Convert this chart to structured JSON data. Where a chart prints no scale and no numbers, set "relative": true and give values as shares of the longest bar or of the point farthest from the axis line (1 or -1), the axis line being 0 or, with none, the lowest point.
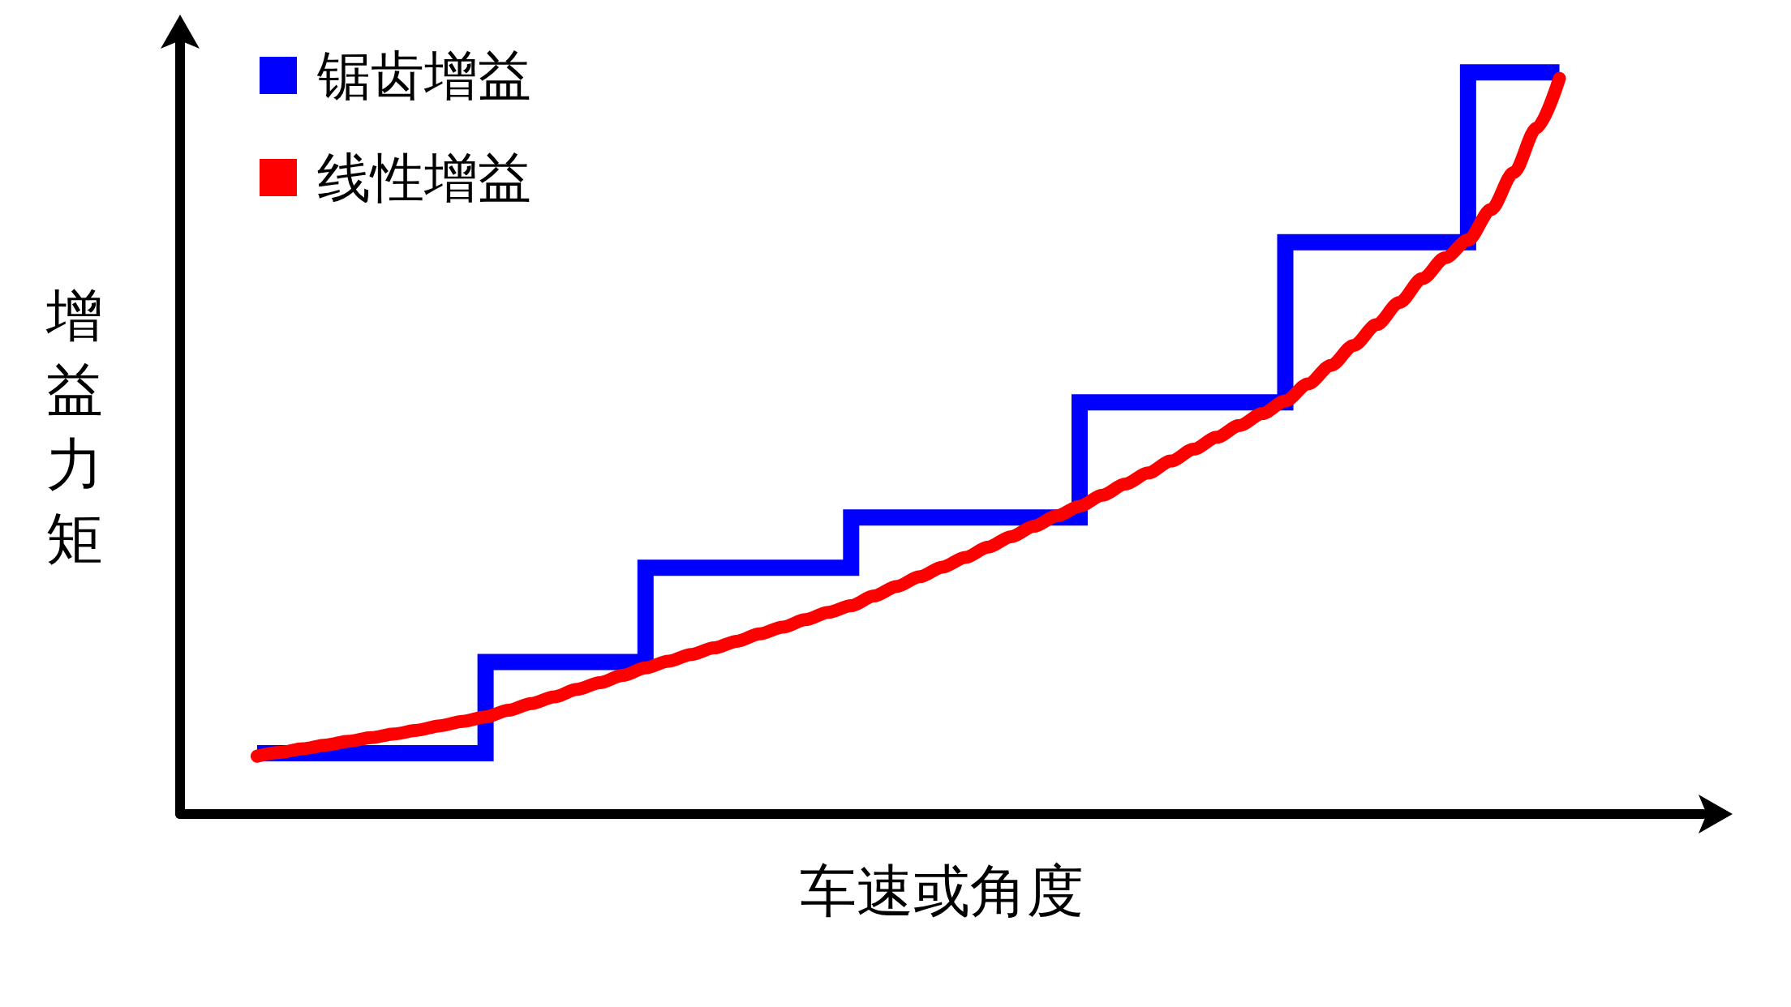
{
  "chart_data": {
    "type": "line",
    "relative": true,
    "xlabel": "车速或角度",
    "ylabel": "增益力矩",
    "legend": "top left",
    "grid": false,
    "categories": [
      null,
      null,
      null,
      null,
      null,
      null,
      null,
      null,
      null,
      null,
      null,
      null,
      null,
      null,
      null,
      null,
      null,
      null,
      null,
      null,
      null,
      null,
      null,
      null,
      null,
      null,
      null,
      null,
      null,
      null,
      null,
      null,
      null,
      null,
      null,
      null,
      null,
      null,
      null,
      null,
      null,
      null,
      null,
      null,
      null,
      null,
      null,
      null,
      null,
      null,
      null,
      null,
      null,
      null,
      null,
      null,
      null,
      null
    ],
    "series": [
      {
        "name": "锯齿增益",
        "type": "step",
        "color": "#0000ff",
        "values": [
          0.082,
          0.082,
          0.082,
          0.082,
          0.082,
          0.082,
          0.082,
          0.082,
          0.082,
          0.082,
          0.205,
          0.205,
          0.205,
          0.205,
          0.205,
          0.205,
          0.205,
          0.332,
          0.332,
          0.332,
          0.332,
          0.332,
          0.332,
          0.332,
          0.332,
          0.332,
          0.4,
          0.4,
          0.4,
          0.4,
          0.4,
          0.4,
          0.4,
          0.4,
          0.4,
          0.4,
          0.555,
          0.555,
          0.555,
          0.555,
          0.555,
          0.555,
          0.555,
          0.555,
          0.555,
          0.771,
          0.771,
          0.771,
          0.771,
          0.771,
          0.771,
          0.771,
          0.771,
          1.0,
          1.0,
          1.0,
          1.0,
          1.0
        ]
      },
      {
        "name": "线性增益",
        "type": "line",
        "color": "#ff0000",
        "values": [
          0.078,
          0.083,
          0.088,
          0.093,
          0.098,
          0.103,
          0.108,
          0.113,
          0.119,
          0.125,
          0.131,
          0.14,
          0.149,
          0.158,
          0.168,
          0.177,
          0.187,
          0.197,
          0.206,
          0.215,
          0.224,
          0.233,
          0.243,
          0.252,
          0.262,
          0.272,
          0.281,
          0.294,
          0.307,
          0.32,
          0.333,
          0.346,
          0.36,
          0.374,
          0.388,
          0.402,
          0.415,
          0.43,
          0.445,
          0.46,
          0.476,
          0.492,
          0.508,
          0.524,
          0.54,
          0.557,
          0.58,
          0.605,
          0.632,
          0.66,
          0.69,
          0.722,
          0.75,
          0.774,
          0.815,
          0.865,
          0.925,
          0.992
        ]
      }
    ]
  }
}
